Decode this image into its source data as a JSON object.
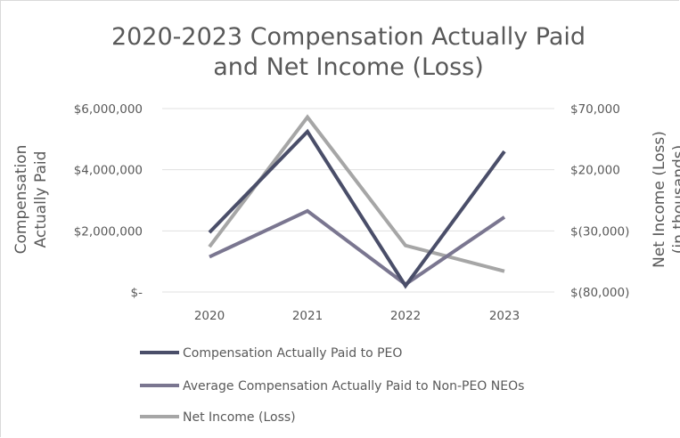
{
  "chart_data": {
    "type": "line",
    "title_lines": [
      "2020-2023 Compensation Actually Paid",
      "and Net Income (Loss)"
    ],
    "categories": [
      "2020",
      "2021",
      "2022",
      "2023"
    ],
    "y_left": {
      "label_lines": [
        "Compensation",
        "Actually Paid"
      ],
      "range": [
        0,
        6000000
      ],
      "ticks": [
        {
          "value": 0,
          "label": "$-"
        },
        {
          "value": 2000000,
          "label": "$2,000,000"
        },
        {
          "value": 4000000,
          "label": "$4,000,000"
        },
        {
          "value": 6000000,
          "label": "$6,000,000"
        }
      ]
    },
    "y_right": {
      "label_lines": [
        "Net Income (Loss)",
        "(in thousands)"
      ],
      "range": [
        -80000,
        70000
      ],
      "ticks": [
        {
          "value": -80000,
          "label": "$(80,000)"
        },
        {
          "value": -30000,
          "label": "$(30,000)"
        },
        {
          "value": 20000,
          "label": "$20,000"
        },
        {
          "value": 70000,
          "label": "$70,000"
        }
      ]
    },
    "series": [
      {
        "name": "Compensation Actually Paid to PEO",
        "axis": "left",
        "color": "#4a4e69",
        "values": [
          1950000,
          5250000,
          200000,
          4600000
        ]
      },
      {
        "name": "Average Compensation Actually Paid to Non-PEO NEOs",
        "axis": "left",
        "color": "#7a7690",
        "values": [
          1150000,
          2650000,
          250000,
          2450000
        ]
      },
      {
        "name": "Net Income (Loss)",
        "axis": "right",
        "color": "#a6a6a6",
        "values": [
          -43000,
          63000,
          -42000,
          -63000
        ]
      }
    ],
    "grid": true,
    "legend_position": "bottom"
  }
}
